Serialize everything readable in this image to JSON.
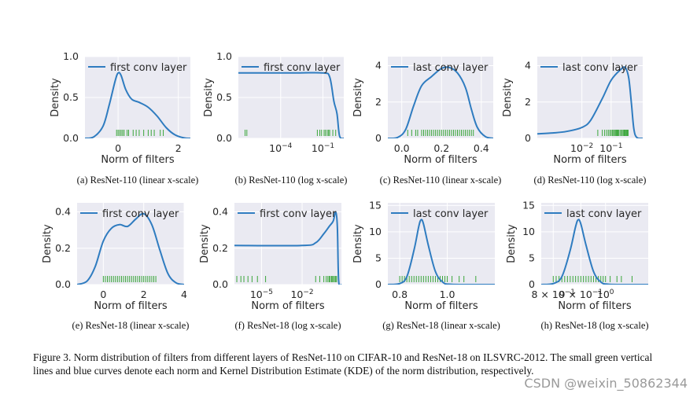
{
  "figure": {
    "caption": "Figure 3.   Norm distribution of filters from different layers of ResNet-110 on CIFAR-10 and ResNet-18 on ILSVRC-2012.  The small green vertical lines and blue curves denote each norm and Kernel Distribution Estimate (KDE) of the norm distribution, respectively.",
    "watermark": "CSDN @weixin_50862344",
    "colors": {
      "kde": "#2f7cc0",
      "rug": "#3aa63a",
      "axes_background": "#eaeaf2"
    }
  },
  "chart_data": [
    {
      "id": "a",
      "type": "line",
      "caption": "(a)  ResNet-110 (linear x-scale)",
      "legend": "first conv layer",
      "legend_position": "top-right",
      "xlabel": "Norm of filters",
      "ylabel": "Density",
      "xscale": "linear",
      "xlim": [
        -1.1,
        2.4
      ],
      "ylim": [
        0,
        1.0
      ],
      "xticks": [
        {
          "v": 0,
          "label": "0"
        },
        {
          "v": 2,
          "label": "2"
        }
      ],
      "yticks": [
        {
          "v": 0,
          "label": "0.0"
        },
        {
          "v": 0.5,
          "label": "0.5"
        },
        {
          "v": 1.0,
          "label": "1.0"
        }
      ],
      "kde": [
        [
          -1.1,
          0
        ],
        [
          -0.8,
          0.02
        ],
        [
          -0.5,
          0.15
        ],
        [
          -0.3,
          0.4
        ],
        [
          -0.1,
          0.7
        ],
        [
          0,
          0.8
        ],
        [
          0.1,
          0.77
        ],
        [
          0.25,
          0.6
        ],
        [
          0.45,
          0.48
        ],
        [
          0.7,
          0.44
        ],
        [
          1.0,
          0.38
        ],
        [
          1.3,
          0.27
        ],
        [
          1.6,
          0.13
        ],
        [
          1.9,
          0.04
        ],
        [
          2.2,
          0.005
        ],
        [
          2.4,
          0
        ]
      ],
      "rug": [
        -0.05,
        0.0,
        0.05,
        0.1,
        0.15,
        0.2,
        0.3,
        0.35,
        0.5,
        0.6,
        0.7,
        0.85,
        1.0,
        1.1,
        1.2,
        1.4,
        1.5
      ]
    },
    {
      "id": "b",
      "type": "line",
      "caption": "(b)  ResNet-110 (log x-scale)",
      "legend": "first conv layer",
      "legend_position": "top-right",
      "xlabel": "",
      "ylabel": "Density",
      "xscale": "log",
      "xlim": [
        1e-07,
        3
      ],
      "ylim": [
        0,
        1.0
      ],
      "xticks": [
        {
          "v": 0.0001,
          "label": "10",
          "exp": "−4"
        },
        {
          "v": 0.1,
          "label": "10",
          "exp": "−1"
        }
      ],
      "yticks": [
        {
          "v": 0,
          "label": "0.0"
        },
        {
          "v": 0.5,
          "label": "0.5"
        },
        {
          "v": 1.0,
          "label": "1.0"
        }
      ],
      "kde": [
        [
          1e-07,
          0.8
        ],
        [
          0.001,
          0.8
        ],
        [
          0.1,
          0.8
        ],
        [
          0.3,
          0.75
        ],
        [
          0.6,
          0.45
        ],
        [
          1.0,
          0.3
        ],
        [
          1.5,
          0.03
        ],
        [
          3,
          0
        ]
      ],
      "rug": [
        3e-07,
        4e-07,
        0.04,
        0.06,
        0.08,
        0.12,
        0.15,
        0.2,
        0.25,
        0.3,
        0.5,
        0.8
      ]
    },
    {
      "id": "c",
      "type": "line",
      "caption": "(c)  ResNet-110 (linear x-scale)",
      "legend": "last conv layer",
      "legend_position": "top-right",
      "xlabel": "Norm of filters",
      "ylabel": "Density",
      "xscale": "linear",
      "xlim": [
        -0.07,
        0.46
      ],
      "ylim": [
        0,
        4.5
      ],
      "xticks": [
        {
          "v": 0.0,
          "label": "0.0"
        },
        {
          "v": 0.2,
          "label": "0.2"
        },
        {
          "v": 0.4,
          "label": "0.4"
        }
      ],
      "yticks": [
        {
          "v": 0,
          "label": "0"
        },
        {
          "v": 2,
          "label": "2"
        },
        {
          "v": 4,
          "label": "4"
        }
      ],
      "kde": [
        [
          -0.07,
          0
        ],
        [
          -0.02,
          0.05
        ],
        [
          0.02,
          0.5
        ],
        [
          0.06,
          1.8
        ],
        [
          0.1,
          2.9
        ],
        [
          0.15,
          3.4
        ],
        [
          0.2,
          3.85
        ],
        [
          0.24,
          3.9
        ],
        [
          0.28,
          3.6
        ],
        [
          0.32,
          2.8
        ],
        [
          0.35,
          1.6
        ],
        [
          0.38,
          0.6
        ],
        [
          0.42,
          0.1
        ],
        [
          0.46,
          0
        ]
      ],
      "rug": [
        0.03,
        0.05,
        0.07,
        0.08,
        0.1,
        0.11,
        0.12,
        0.13,
        0.14,
        0.15,
        0.16,
        0.17,
        0.18,
        0.19,
        0.2,
        0.21,
        0.22,
        0.23,
        0.24,
        0.25,
        0.26,
        0.27,
        0.28,
        0.29,
        0.3,
        0.31,
        0.32,
        0.33,
        0.34,
        0.35,
        0.36
      ]
    },
    {
      "id": "d",
      "type": "line",
      "caption": "(d)  ResNet-110 (log x-scale)",
      "legend": "last conv layer",
      "legend_position": "top-right",
      "xlabel": "Norm of filters",
      "ylabel": "Density",
      "xscale": "log",
      "xlim": [
        0.0003,
        1.2
      ],
      "ylim": [
        0,
        4.5
      ],
      "xticks": [
        {
          "v": 0.01,
          "label": "10",
          "exp": "−2"
        },
        {
          "v": 0.1,
          "label": "10",
          "exp": "−1"
        }
      ],
      "yticks": [
        {
          "v": 0,
          "label": "0"
        },
        {
          "v": 2,
          "label": "2"
        },
        {
          "v": 4,
          "label": "4"
        }
      ],
      "kde": [
        [
          0.0003,
          0.25
        ],
        [
          0.001,
          0.3
        ],
        [
          0.003,
          0.38
        ],
        [
          0.01,
          0.6
        ],
        [
          0.02,
          1.0
        ],
        [
          0.05,
          2.2
        ],
        [
          0.1,
          3.2
        ],
        [
          0.2,
          3.75
        ],
        [
          0.3,
          3.9
        ],
        [
          0.4,
          3.3
        ],
        [
          0.5,
          1.8
        ],
        [
          0.6,
          0.5
        ],
        [
          0.75,
          0.05
        ],
        [
          1.2,
          0
        ]
      ],
      "rug": [
        0.035,
        0.05,
        0.06,
        0.07,
        0.08,
        0.09,
        0.1,
        0.11,
        0.12,
        0.13,
        0.14,
        0.15,
        0.16,
        0.17,
        0.18,
        0.2,
        0.22,
        0.24,
        0.26,
        0.28,
        0.3,
        0.32,
        0.34,
        0.36,
        0.38
      ]
    },
    {
      "id": "e",
      "type": "line",
      "caption": "(e)  ResNet-18 (linear x-scale)",
      "legend": "first conv layer",
      "legend_position": "top-right",
      "xlabel": "Norm of filters",
      "ylabel": "Density",
      "xscale": "linear",
      "xlim": [
        -1.3,
        4.0
      ],
      "ylim": [
        0,
        0.45
      ],
      "xticks": [
        {
          "v": 0,
          "label": "0"
        },
        {
          "v": 2,
          "label": "2"
        },
        {
          "v": 4,
          "label": "4"
        }
      ],
      "yticks": [
        {
          "v": 0,
          "label": "0.0"
        },
        {
          "v": 0.2,
          "label": "0.2"
        },
        {
          "v": 0.4,
          "label": "0.4"
        }
      ],
      "kde": [
        [
          -1.3,
          0
        ],
        [
          -0.8,
          0.02
        ],
        [
          -0.4,
          0.1
        ],
        [
          0,
          0.24
        ],
        [
          0.4,
          0.31
        ],
        [
          0.8,
          0.33
        ],
        [
          1.2,
          0.32
        ],
        [
          1.6,
          0.36
        ],
        [
          2.0,
          0.39
        ],
        [
          2.4,
          0.33
        ],
        [
          2.8,
          0.19
        ],
        [
          3.2,
          0.06
        ],
        [
          3.6,
          0.01
        ],
        [
          4.0,
          0
        ]
      ],
      "rug": [
        0.0,
        0.1,
        0.2,
        0.3,
        0.4,
        0.5,
        0.6,
        0.7,
        0.8,
        0.9,
        1.0,
        1.1,
        1.2,
        1.3,
        1.4,
        1.5,
        1.6,
        1.7,
        1.8,
        1.9,
        2.0,
        2.1,
        2.2,
        2.3,
        2.4,
        2.5,
        2.6
      ]
    },
    {
      "id": "f",
      "type": "line",
      "caption": "(f)  ResNet-18 (log x-scale)",
      "legend": "first conv layer",
      "legend_position": "top-right",
      "xlabel": "Norm of filters",
      "ylabel": "Density",
      "xscale": "log",
      "xlim": [
        1e-07,
        8
      ],
      "ylim": [
        0,
        0.45
      ],
      "xticks": [
        {
          "v": 1e-05,
          "label": "10",
          "exp": "−5"
        },
        {
          "v": 0.01,
          "label": "10",
          "exp": "−2"
        }
      ],
      "yticks": [
        {
          "v": 0,
          "label": "0.0"
        },
        {
          "v": 0.2,
          "label": "0.2"
        },
        {
          "v": 0.4,
          "label": "0.4"
        }
      ],
      "kde": [
        [
          1e-07,
          0.215
        ],
        [
          0.01,
          0.215
        ],
        [
          0.1,
          0.23
        ],
        [
          0.4,
          0.28
        ],
        [
          1.0,
          0.32
        ],
        [
          2.0,
          0.35
        ],
        [
          3.0,
          0.4
        ],
        [
          4.0,
          0.32
        ],
        [
          5.0,
          0.02
        ],
        [
          8,
          0
        ]
      ],
      "rug": [
        1.5e-07,
        3e-07,
        5e-07,
        1e-06,
        2e-06,
        5e-06,
        2e-05,
        0.1,
        0.2,
        0.4,
        0.6,
        0.8,
        1.0,
        1.2,
        1.5,
        1.8,
        2.0,
        2.5,
        3.0,
        3.5
      ]
    },
    {
      "id": "g",
      "type": "line",
      "caption": "(g)  ResNet-18 (linear x-scale)",
      "legend": "last conv layer",
      "legend_position": "top-right",
      "xlabel": "Norm of filters",
      "ylabel": "Density",
      "xscale": "linear",
      "xlim": [
        0.75,
        1.2
      ],
      "ylim": [
        0,
        15.5
      ],
      "xticks": [
        {
          "v": 0.8,
          "label": "0.8"
        },
        {
          "v": 1.0,
          "label": "1.0"
        }
      ],
      "yticks": [
        {
          "v": 0,
          "label": "0"
        },
        {
          "v": 5,
          "label": "5"
        },
        {
          "v": 10,
          "label": "10"
        },
        {
          "v": 15,
          "label": "15"
        }
      ],
      "kde": [
        [
          0.75,
          0
        ],
        [
          0.8,
          0.2
        ],
        [
          0.83,
          1.5
        ],
        [
          0.86,
          6.5
        ],
        [
          0.88,
          11
        ],
        [
          0.89,
          12.3
        ],
        [
          0.9,
          11.5
        ],
        [
          0.92,
          7.5
        ],
        [
          0.95,
          2.5
        ],
        [
          0.98,
          0.5
        ],
        [
          1.02,
          0.05
        ],
        [
          1.2,
          0
        ]
      ],
      "rug": [
        0.8,
        0.81,
        0.82,
        0.83,
        0.84,
        0.85,
        0.86,
        0.87,
        0.88,
        0.89,
        0.9,
        0.91,
        0.92,
        0.93,
        0.94,
        0.95,
        0.96,
        0.97,
        0.98,
        0.99,
        1.0,
        1.02,
        1.05,
        1.07,
        1.12
      ]
    },
    {
      "id": "h",
      "type": "line",
      "caption": "(h)  ResNet-18 (log x-scale)",
      "legend": "last conv layer",
      "legend_position": "top-right",
      "xlabel": "Norm of filters",
      "ylabel": "Density",
      "xscale": "log",
      "xlim": [
        0.76,
        1.2
      ],
      "ylim": [
        0,
        15.5
      ],
      "xticks": [
        {
          "v": 0.8,
          "label": "8 × 10",
          "exp": "−1"
        },
        {
          "v": 0.9,
          "label": "9 × 10",
          "exp": "−1"
        },
        {
          "v": 1.0,
          "label": "10",
          "exp": "0"
        }
      ],
      "yticks": [
        {
          "v": 0,
          "label": "0"
        },
        {
          "v": 5,
          "label": "5"
        },
        {
          "v": 10,
          "label": "10"
        },
        {
          "v": 15,
          "label": "15"
        }
      ],
      "kde": [
        [
          0.76,
          0
        ],
        [
          0.8,
          0.2
        ],
        [
          0.83,
          1.5
        ],
        [
          0.86,
          6.5
        ],
        [
          0.88,
          11
        ],
        [
          0.89,
          12.3
        ],
        [
          0.9,
          11.5
        ],
        [
          0.92,
          7.5
        ],
        [
          0.95,
          2.5
        ],
        [
          0.98,
          0.5
        ],
        [
          1.02,
          0.05
        ],
        [
          1.2,
          0
        ]
      ],
      "rug": [
        0.8,
        0.81,
        0.82,
        0.83,
        0.84,
        0.85,
        0.86,
        0.87,
        0.88,
        0.89,
        0.9,
        0.91,
        0.92,
        0.93,
        0.94,
        0.95,
        0.96,
        0.97,
        0.98,
        0.99,
        1.0,
        1.02,
        1.05,
        1.07,
        1.12
      ]
    }
  ]
}
